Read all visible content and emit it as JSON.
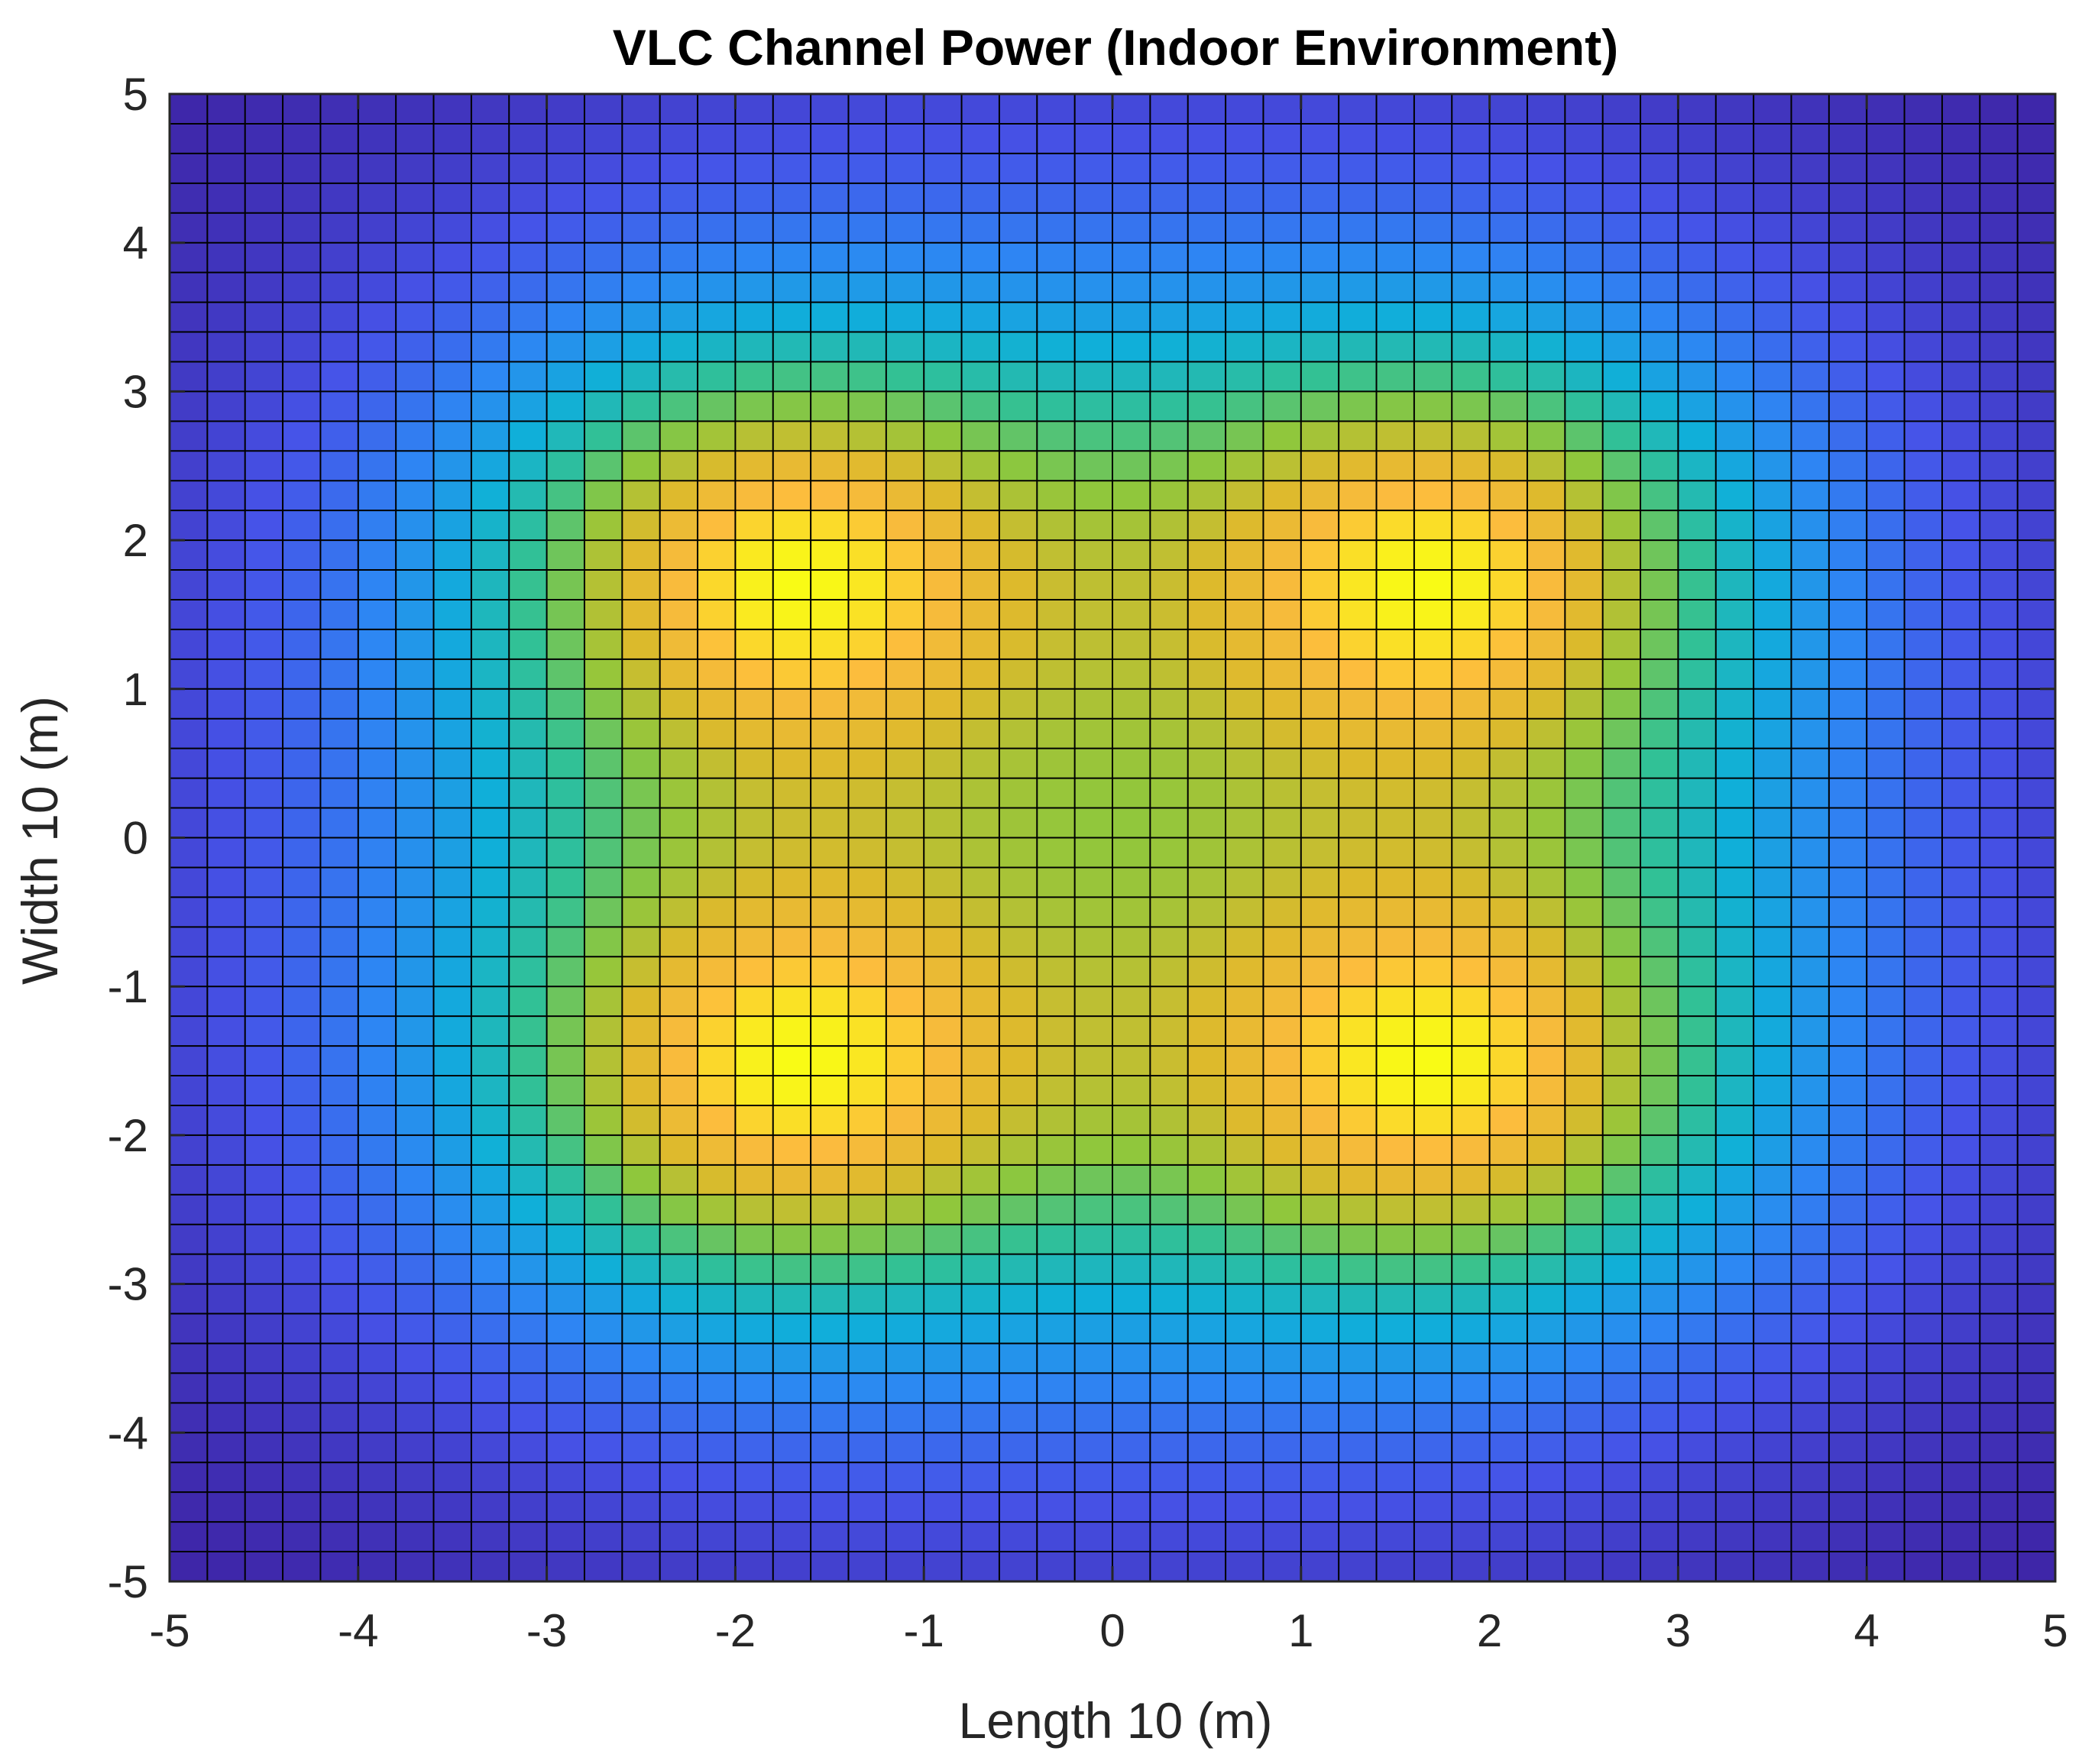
{
  "chart_data": {
    "type": "heatmap",
    "title": "VLC Channel Power (Indoor Environment)",
    "xlabel": "Length 10 (m)",
    "ylabel": "Width 10 (m)",
    "xlim": [
      -5,
      5
    ],
    "ylim": [
      -5,
      5
    ],
    "x_ticks": [
      -5,
      -4,
      -3,
      -2,
      -1,
      0,
      1,
      2,
      3,
      4,
      5
    ],
    "y_ticks": [
      -5,
      -4,
      -3,
      -2,
      -1,
      0,
      1,
      2,
      3,
      4,
      5
    ],
    "x_tick_labels": [
      "-5",
      "-4",
      "-3",
      "-2",
      "-1",
      "0",
      "1",
      "2",
      "3",
      "4",
      "5"
    ],
    "y_tick_labels": [
      "-5",
      "-4",
      "-3",
      "-2",
      "-1",
      "0",
      "1",
      "2",
      "3",
      "4",
      "5"
    ],
    "grid_cells_x": 50,
    "grid_cells_y": 50,
    "cell_edges": true,
    "colormap": "parula",
    "colormap_stops": [
      "#3e26a8",
      "#4653e8",
      "#2d87f3",
      "#10afd9",
      "#32c195",
      "#8fc73c",
      "#dcba2c",
      "#fcbb3e",
      "#f9fb15"
    ],
    "light_sources": [
      {
        "x": -1.75,
        "y": 1.8
      },
      {
        "x": 1.75,
        "y": 1.8
      },
      {
        "x": -1.75,
        "y": -1.6
      },
      {
        "x": 1.75,
        "y": -1.6
      }
    ],
    "box": true,
    "legend": "none",
    "colorbar": false
  }
}
